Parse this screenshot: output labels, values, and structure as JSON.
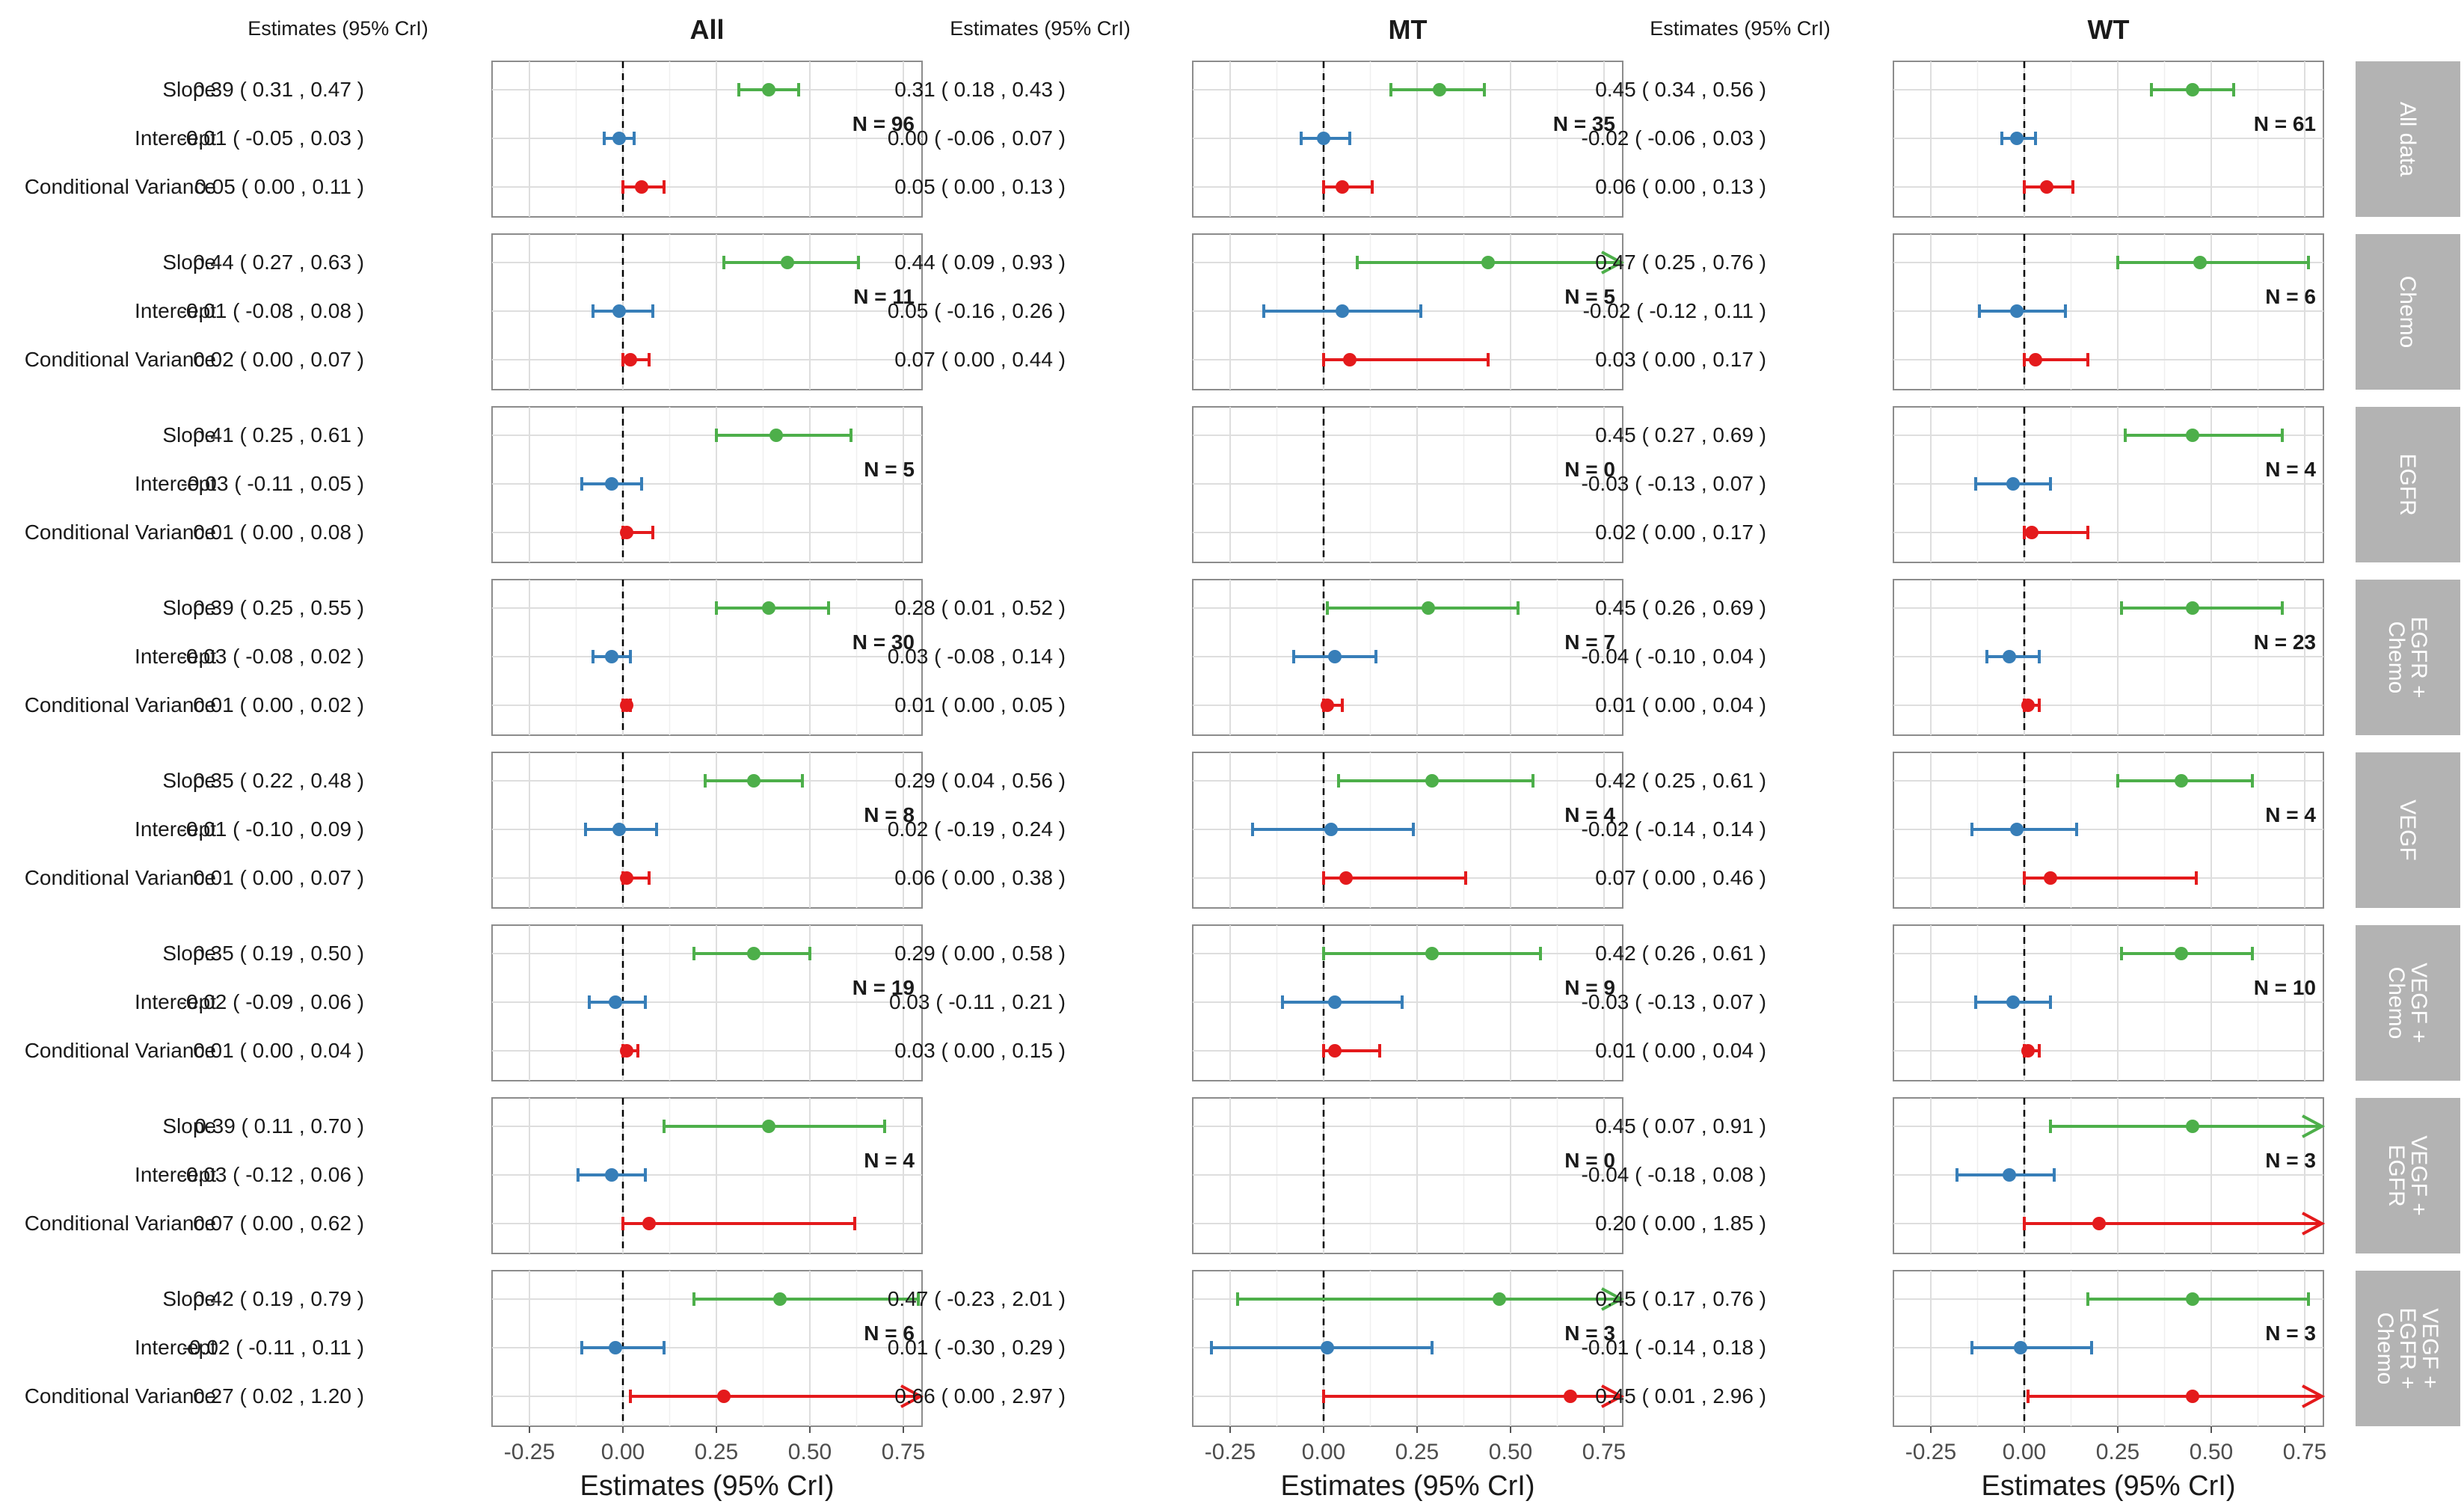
{
  "chart_data": {
    "type": "forest",
    "column_titles": [
      "All",
      "MT",
      "WT"
    ],
    "estimates_header": "Estimates (95% CrI)",
    "row_labels": [
      "Slope",
      "Intercept",
      "Conditional Variance"
    ],
    "strip_labels": [
      "All data",
      "Chemo",
      "EGFR",
      "EGFR + Chemo",
      "VEGF",
      "VEGF + Chemo",
      "VEGF + EGFR",
      "VEGF + EGFR + Chemo"
    ],
    "xlabel": "Estimates (95% CrI)",
    "xlim": [
      -0.35,
      0.8
    ],
    "xticks": [
      "-0.25",
      "0.00",
      "0.25",
      "0.50",
      "0.75"
    ],
    "reference_line_x": 0,
    "colors": {
      "Slope": "#4daf4a",
      "Intercept": "#377eb8",
      "Conditional Variance": "#e41a1c",
      "strip_bg": "#b3b3b3",
      "strip_text": "#ffffff",
      "grid": "#dedede",
      "panel_border": "#8c8c8c"
    },
    "panels": [
      {
        "group": "All data",
        "All": {
          "n": "N = 96",
          "rows": [
            {
              "label": "0.39 ( 0.31 , 0.47 )",
              "est": 0.39,
              "lo": 0.31,
              "hi": 0.47
            },
            {
              "label": "-0.01 ( -0.05 , 0.03 )",
              "est": -0.01,
              "lo": -0.05,
              "hi": 0.03
            },
            {
              "label": "0.05 ( 0.00 , 0.11 )",
              "est": 0.05,
              "lo": 0.0,
              "hi": 0.11
            }
          ]
        },
        "MT": {
          "n": "N = 35",
          "rows": [
            {
              "label": "0.31 ( 0.18 , 0.43 )",
              "est": 0.31,
              "lo": 0.18,
              "hi": 0.43
            },
            {
              "label": "0.00 ( -0.06 , 0.07 )",
              "est": 0.0,
              "lo": -0.06,
              "hi": 0.07
            },
            {
              "label": "0.05 ( 0.00 , 0.13 )",
              "est": 0.05,
              "lo": 0.0,
              "hi": 0.13
            }
          ]
        },
        "WT": {
          "n": "N = 61",
          "rows": [
            {
              "label": "0.45 ( 0.34 , 0.56 )",
              "est": 0.45,
              "lo": 0.34,
              "hi": 0.56
            },
            {
              "label": "-0.02 ( -0.06 , 0.03 )",
              "est": -0.02,
              "lo": -0.06,
              "hi": 0.03
            },
            {
              "label": "0.06 ( 0.00 , 0.13 )",
              "est": 0.06,
              "lo": 0.0,
              "hi": 0.13
            }
          ]
        }
      },
      {
        "group": "Chemo",
        "All": {
          "n": "N = 11",
          "rows": [
            {
              "label": "0.44 ( 0.27 , 0.63 )",
              "est": 0.44,
              "lo": 0.27,
              "hi": 0.63
            },
            {
              "label": "-0.01 ( -0.08 , 0.08 )",
              "est": -0.01,
              "lo": -0.08,
              "hi": 0.08
            },
            {
              "label": "0.02 ( 0.00 , 0.07 )",
              "est": 0.02,
              "lo": 0.0,
              "hi": 0.07
            }
          ]
        },
        "MT": {
          "n": "N = 5",
          "rows": [
            {
              "label": "0.44 ( 0.09 , 0.93 )",
              "est": 0.44,
              "lo": 0.09,
              "hi": 0.93
            },
            {
              "label": "0.05 ( -0.16 , 0.26 )",
              "est": 0.05,
              "lo": -0.16,
              "hi": 0.26
            },
            {
              "label": "0.07 ( 0.00 , 0.44 )",
              "est": 0.07,
              "lo": 0.0,
              "hi": 0.44
            }
          ]
        },
        "WT": {
          "n": "N = 6",
          "rows": [
            {
              "label": "0.47 ( 0.25 , 0.76 )",
              "est": 0.47,
              "lo": 0.25,
              "hi": 0.76
            },
            {
              "label": "-0.02 ( -0.12 , 0.11 )",
              "est": -0.02,
              "lo": -0.12,
              "hi": 0.11
            },
            {
              "label": "0.03 ( 0.00 , 0.17 )",
              "est": 0.03,
              "lo": 0.0,
              "hi": 0.17
            }
          ]
        }
      },
      {
        "group": "EGFR",
        "All": {
          "n": "N = 5",
          "rows": [
            {
              "label": "0.41 ( 0.25 , 0.61 )",
              "est": 0.41,
              "lo": 0.25,
              "hi": 0.61
            },
            {
              "label": "-0.03 ( -0.11 , 0.05 )",
              "est": -0.03,
              "lo": -0.11,
              "hi": 0.05
            },
            {
              "label": "0.01 ( 0.00 , 0.08 )",
              "est": 0.01,
              "lo": 0.0,
              "hi": 0.08
            }
          ]
        },
        "MT": {
          "n": "N = 0",
          "rows": []
        },
        "WT": {
          "n": "N = 4",
          "rows": [
            {
              "label": "0.45 ( 0.27 , 0.69 )",
              "est": 0.45,
              "lo": 0.27,
              "hi": 0.69
            },
            {
              "label": "-0.03 ( -0.13 , 0.07 )",
              "est": -0.03,
              "lo": -0.13,
              "hi": 0.07
            },
            {
              "label": "0.02 ( 0.00 , 0.17 )",
              "est": 0.02,
              "lo": 0.0,
              "hi": 0.17
            }
          ]
        }
      },
      {
        "group": "EGFR + Chemo",
        "All": {
          "n": "N = 30",
          "rows": [
            {
              "label": "0.39 ( 0.25 , 0.55 )",
              "est": 0.39,
              "lo": 0.25,
              "hi": 0.55
            },
            {
              "label": "-0.03 ( -0.08 , 0.02 )",
              "est": -0.03,
              "lo": -0.08,
              "hi": 0.02
            },
            {
              "label": "0.01 ( 0.00 , 0.02 )",
              "est": 0.01,
              "lo": 0.0,
              "hi": 0.02
            }
          ]
        },
        "MT": {
          "n": "N = 7",
          "rows": [
            {
              "label": "0.28 ( 0.01 , 0.52 )",
              "est": 0.28,
              "lo": 0.01,
              "hi": 0.52
            },
            {
              "label": "0.03 ( -0.08 , 0.14 )",
              "est": 0.03,
              "lo": -0.08,
              "hi": 0.14
            },
            {
              "label": "0.01 ( 0.00 , 0.05 )",
              "est": 0.01,
              "lo": 0.0,
              "hi": 0.05
            }
          ]
        },
        "WT": {
          "n": "N = 23",
          "rows": [
            {
              "label": "0.45 ( 0.26 , 0.69 )",
              "est": 0.45,
              "lo": 0.26,
              "hi": 0.69
            },
            {
              "label": "-0.04 ( -0.10 , 0.04 )",
              "est": -0.04,
              "lo": -0.1,
              "hi": 0.04
            },
            {
              "label": "0.01 ( 0.00 , 0.04 )",
              "est": 0.01,
              "lo": 0.0,
              "hi": 0.04
            }
          ]
        }
      },
      {
        "group": "VEGF",
        "All": {
          "n": "N = 8",
          "rows": [
            {
              "label": "0.35 ( 0.22 , 0.48 )",
              "est": 0.35,
              "lo": 0.22,
              "hi": 0.48
            },
            {
              "label": "-0.01 ( -0.10 , 0.09 )",
              "est": -0.01,
              "lo": -0.1,
              "hi": 0.09
            },
            {
              "label": "0.01 ( 0.00 , 0.07 )",
              "est": 0.01,
              "lo": 0.0,
              "hi": 0.07
            }
          ]
        },
        "MT": {
          "n": "N = 4",
          "rows": [
            {
              "label": "0.29 ( 0.04 , 0.56 )",
              "est": 0.29,
              "lo": 0.04,
              "hi": 0.56
            },
            {
              "label": "0.02 ( -0.19 , 0.24 )",
              "est": 0.02,
              "lo": -0.19,
              "hi": 0.24
            },
            {
              "label": "0.06 ( 0.00 , 0.38 )",
              "est": 0.06,
              "lo": 0.0,
              "hi": 0.38
            }
          ]
        },
        "WT": {
          "n": "N = 4",
          "rows": [
            {
              "label": "0.42 ( 0.25 , 0.61 )",
              "est": 0.42,
              "lo": 0.25,
              "hi": 0.61
            },
            {
              "label": "-0.02 ( -0.14 , 0.14 )",
              "est": -0.02,
              "lo": -0.14,
              "hi": 0.14
            },
            {
              "label": "0.07 ( 0.00 , 0.46 )",
              "est": 0.07,
              "lo": 0.0,
              "hi": 0.46
            }
          ]
        }
      },
      {
        "group": "VEGF + Chemo",
        "All": {
          "n": "N = 19",
          "rows": [
            {
              "label": "0.35 ( 0.19 , 0.50 )",
              "est": 0.35,
              "lo": 0.19,
              "hi": 0.5
            },
            {
              "label": "-0.02 ( -0.09 , 0.06 )",
              "est": -0.02,
              "lo": -0.09,
              "hi": 0.06
            },
            {
              "label": "0.01 ( 0.00 , 0.04 )",
              "est": 0.01,
              "lo": 0.0,
              "hi": 0.04
            }
          ]
        },
        "MT": {
          "n": "N = 9",
          "rows": [
            {
              "label": "0.29 ( 0.00 , 0.58 )",
              "est": 0.29,
              "lo": 0.0,
              "hi": 0.58
            },
            {
              "label": "0.03 ( -0.11 , 0.21 )",
              "est": 0.03,
              "lo": -0.11,
              "hi": 0.21
            },
            {
              "label": "0.03 ( 0.00 , 0.15 )",
              "est": 0.03,
              "lo": 0.0,
              "hi": 0.15
            }
          ]
        },
        "WT": {
          "n": "N = 10",
          "rows": [
            {
              "label": "0.42 ( 0.26 , 0.61 )",
              "est": 0.42,
              "lo": 0.26,
              "hi": 0.61
            },
            {
              "label": "-0.03 ( -0.13 , 0.07 )",
              "est": -0.03,
              "lo": -0.13,
              "hi": 0.07
            },
            {
              "label": "0.01 ( 0.00 , 0.04 )",
              "est": 0.01,
              "lo": 0.0,
              "hi": 0.04
            }
          ]
        }
      },
      {
        "group": "VEGF + EGFR",
        "All": {
          "n": "N = 4",
          "rows": [
            {
              "label": "0.39 ( 0.11 , 0.70 )",
              "est": 0.39,
              "lo": 0.11,
              "hi": 0.7
            },
            {
              "label": "-0.03 ( -0.12 , 0.06 )",
              "est": -0.03,
              "lo": -0.12,
              "hi": 0.06
            },
            {
              "label": "0.07 ( 0.00 , 0.62 )",
              "est": 0.07,
              "lo": 0.0,
              "hi": 0.62
            }
          ]
        },
        "MT": {
          "n": "N = 0",
          "rows": []
        },
        "WT": {
          "n": "N = 3",
          "rows": [
            {
              "label": "0.45 ( 0.07 , 0.91 )",
              "est": 0.45,
              "lo": 0.07,
              "hi": 0.91
            },
            {
              "label": "-0.04 ( -0.18 , 0.08 )",
              "est": -0.04,
              "lo": -0.18,
              "hi": 0.08
            },
            {
              "label": "0.20 ( 0.00 , 1.85 )",
              "est": 0.2,
              "lo": 0.0,
              "hi": 1.85
            }
          ]
        }
      },
      {
        "group": "VEGF + EGFR + Chemo",
        "All": {
          "n": "N = 6",
          "rows": [
            {
              "label": "0.42 ( 0.19 , 0.79 )",
              "est": 0.42,
              "lo": 0.19,
              "hi": 0.79
            },
            {
              "label": "-0.02 ( -0.11 , 0.11 )",
              "est": -0.02,
              "lo": -0.11,
              "hi": 0.11
            },
            {
              "label": "0.27 ( 0.02 , 1.20 )",
              "est": 0.27,
              "lo": 0.02,
              "hi": 1.2
            }
          ]
        },
        "MT": {
          "n": "N = 3",
          "rows": [
            {
              "label": "0.47 ( -0.23 , 2.01 )",
              "est": 0.47,
              "lo": -0.23,
              "hi": 2.01
            },
            {
              "label": "0.01 ( -0.30 , 0.29 )",
              "est": 0.01,
              "lo": -0.3,
              "hi": 0.29
            },
            {
              "label": "0.66 ( 0.00 , 2.97 )",
              "est": 0.66,
              "lo": 0.0,
              "hi": 2.97
            }
          ]
        },
        "WT": {
          "n": "N = 3",
          "rows": [
            {
              "label": "0.45 ( 0.17 , 0.76 )",
              "est": 0.45,
              "lo": 0.17,
              "hi": 0.76
            },
            {
              "label": "-0.01 ( -0.14 , 0.18 )",
              "est": -0.01,
              "lo": -0.14,
              "hi": 0.18
            },
            {
              "label": "0.45 ( 0.01 , 2.96 )",
              "est": 0.45,
              "lo": 0.01,
              "hi": 2.96
            }
          ]
        }
      }
    ]
  }
}
